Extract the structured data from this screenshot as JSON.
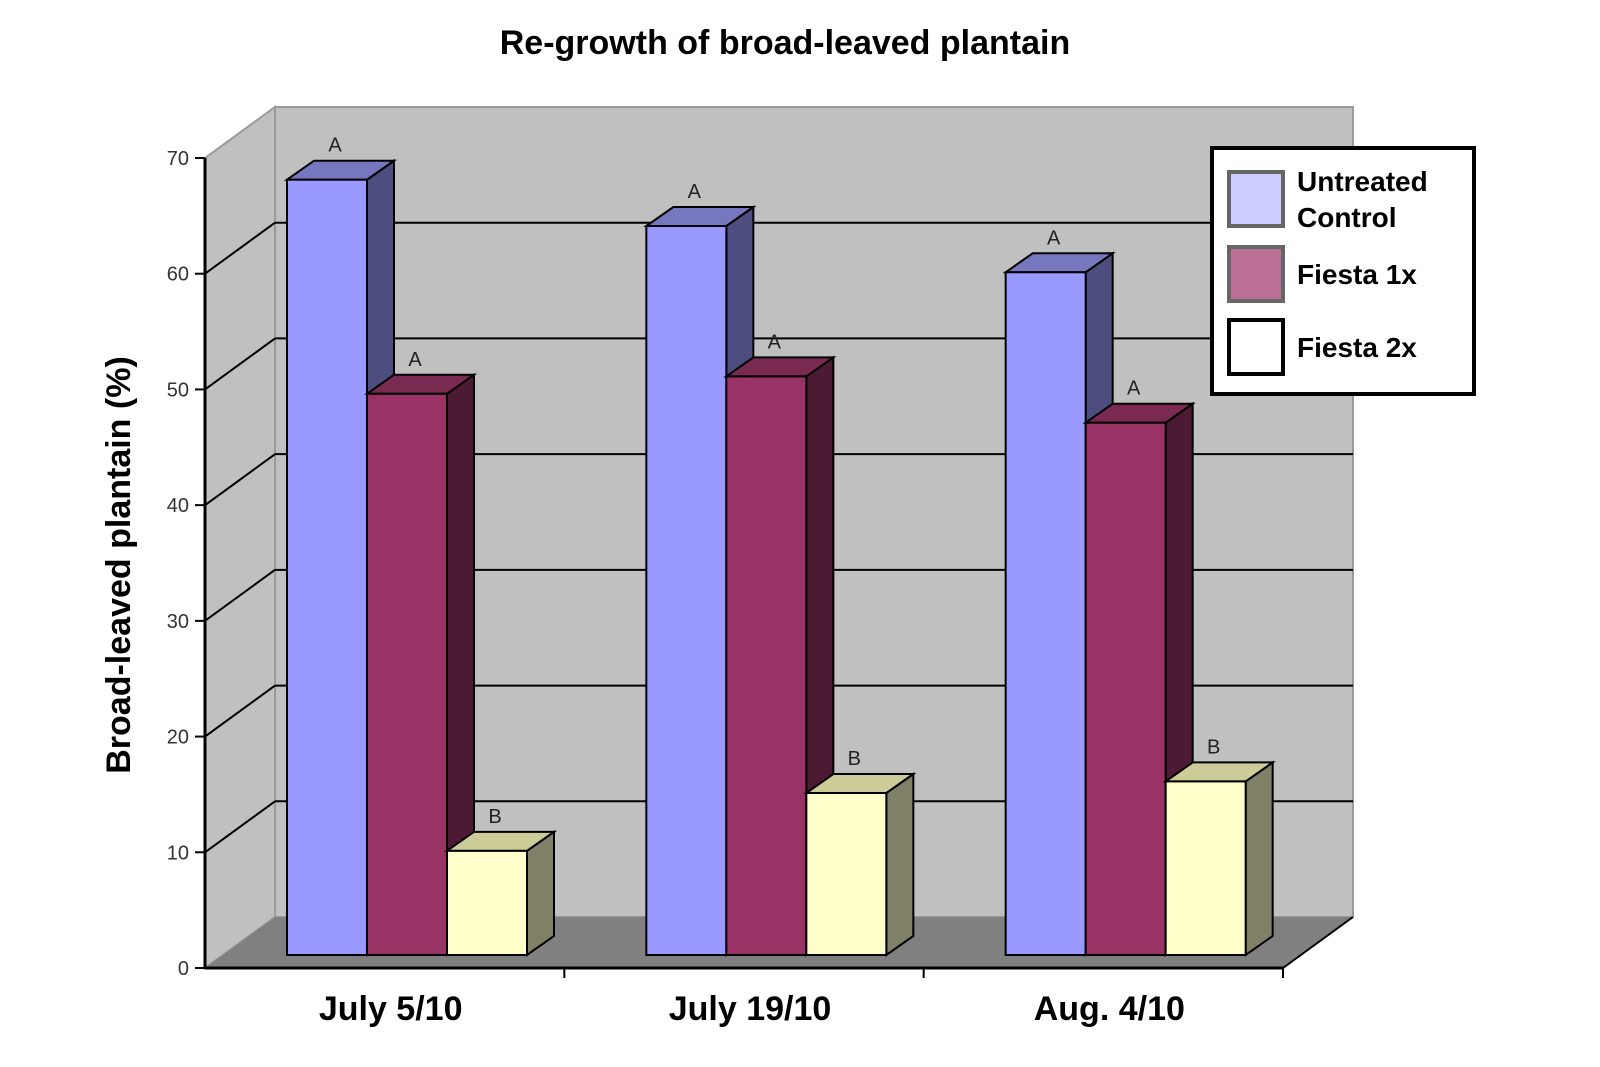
{
  "chart_data": {
    "type": "bar",
    "title": "Re-growth of broad-leaved plantain",
    "xlabel": "",
    "ylabel": "Broad-leaved plantain (%)",
    "ylim": [
      0,
      70
    ],
    "yticks": [
      0,
      10,
      20,
      30,
      40,
      50,
      60,
      70
    ],
    "grid": true,
    "legend_position": "top-right",
    "categories": [
      "July 5/10",
      "July 19/10",
      "Aug. 4/10"
    ],
    "series": [
      {
        "name": "Untreated Control",
        "legend_lines": [
          "Untreated",
          "Control"
        ],
        "values": [
          67,
          63,
          59
        ],
        "labels": [
          "A",
          "A",
          "A"
        ],
        "color": "#9999ff",
        "side": "#4d4d80",
        "top": "#7777c0",
        "legend_color": "#ccccff"
      },
      {
        "name": "Fiesta 1x",
        "legend_lines": [
          "Fiesta 1x"
        ],
        "values": [
          48.5,
          50,
          46
        ],
        "labels": [
          "A",
          "A",
          "A"
        ],
        "color": "#993366",
        "side": "#4d1a33",
        "top": "#7a2950",
        "legend_color": "#bb6f94"
      },
      {
        "name": "Fiesta 2x",
        "legend_lines": [
          "Fiesta 2x"
        ],
        "values": [
          9,
          14,
          15
        ],
        "labels": [
          "B",
          "B",
          "B"
        ],
        "color": "#ffffcc",
        "side": "#808066",
        "top": "#cccc99",
        "legend_color": "#ffffff"
      }
    ]
  }
}
